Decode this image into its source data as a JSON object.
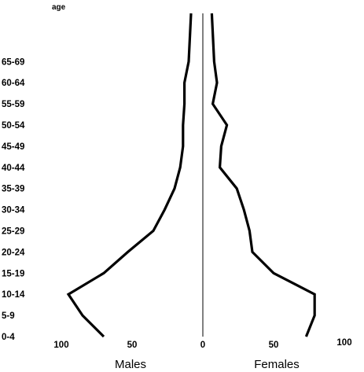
{
  "chart_data": {
    "type": "line",
    "chart_style": "population pyramid (frequency polygon outline)",
    "age_axis_label": "age",
    "xlabel_left": "Males",
    "xlabel_right": "Females",
    "categories": [
      "0-4",
      "5-9",
      "10-14",
      "15-19",
      "20-24",
      "25-29",
      "30-34",
      "35-39",
      "40-44",
      "45-49",
      "50-54",
      "55-59",
      "60-64",
      "65-69"
    ],
    "x_ticks_left": [
      "100",
      "50",
      "0"
    ],
    "x_ticks_right": [
      "50",
      "100"
    ],
    "xlim_each_side": [
      0,
      100
    ],
    "grid": false,
    "series": [
      {
        "side": "left",
        "values": [
          70,
          85,
          95,
          70,
          53,
          35,
          27,
          20,
          16,
          14,
          14,
          13,
          13,
          10
        ]
      },
      {
        "side": "right",
        "values": [
          73,
          79,
          79,
          50,
          35,
          33,
          29,
          24,
          12,
          13,
          17,
          7,
          10,
          8
        ]
      }
    ],
    "colors": {
      "line": "#000000",
      "background": "#ffffff"
    }
  }
}
